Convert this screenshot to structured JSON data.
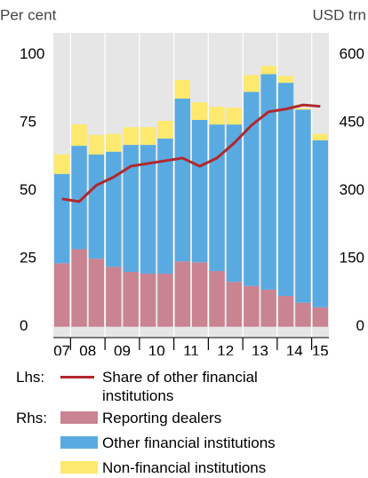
{
  "chart_data": {
    "type": "bar",
    "stacked": true,
    "y_label": "Per cent",
    "y2_label": "USD trn",
    "categories": [
      null,
      null,
      null,
      null,
      null,
      null,
      null,
      null,
      null,
      null,
      null,
      null,
      null,
      null,
      null,
      null
    ],
    "year_labels": [
      "07",
      "08",
      "09",
      "10",
      "11",
      "12",
      "13",
      "14",
      "15"
    ],
    "ylim": [
      -4,
      108
    ],
    "yticks": [
      0,
      25,
      50,
      75,
      100
    ],
    "y2lim": [
      -24,
      648
    ],
    "y2ticks": [
      0,
      150,
      300,
      450,
      600
    ],
    "grid": true,
    "legend_axis_labels": {
      "y": "Lhs:",
      "y2": "Rhs:"
    },
    "series": [
      {
        "name": "Share of other financial institutions",
        "type": "line",
        "axis": "y",
        "color": "#b0282c",
        "values": [
          47,
          46,
          52,
          55,
          59,
          60,
          61,
          62,
          59,
          62,
          67.5,
          74,
          79,
          80,
          81.5,
          81
        ]
      },
      {
        "name": "Reporting dealers",
        "type": "bar",
        "axis": "y2",
        "color": "#c98391",
        "values": [
          140,
          171,
          150,
          132,
          121,
          117,
          117,
          144,
          142,
          123,
          99,
          90,
          82,
          68,
          53,
          43
        ]
      },
      {
        "name": "Other financial institutions",
        "type": "bar",
        "axis": "y2",
        "color": "#5aaae2",
        "values": [
          197,
          228,
          230,
          254,
          280,
          284,
          298,
          359,
          314,
          323,
          347,
          428,
          475,
          470,
          426,
          368
        ]
      },
      {
        "name": "Non-financial institutions",
        "type": "bar",
        "axis": "y2",
        "color": "#fde96d",
        "values": [
          43,
          47,
          43,
          39,
          39,
          39,
          39,
          41,
          39,
          39,
          37,
          37,
          18,
          15,
          3,
          14
        ]
      }
    ]
  }
}
